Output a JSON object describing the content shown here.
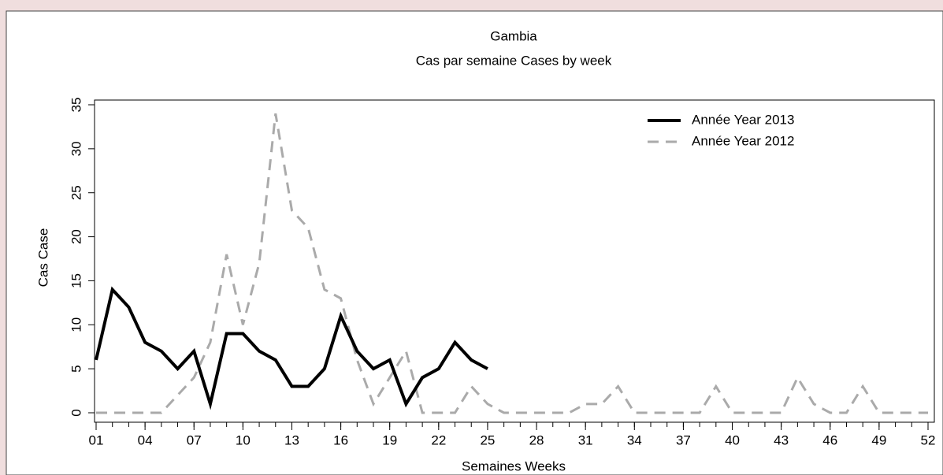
{
  "chart_data": {
    "type": "line",
    "title": "Gambia",
    "subtitle": "Cas par semaine Cases by week",
    "x_label": "Semaines Weeks",
    "y_label": "Cas Case",
    "x": [
      1,
      2,
      3,
      4,
      5,
      6,
      7,
      8,
      9,
      10,
      11,
      12,
      13,
      14,
      15,
      16,
      17,
      18,
      19,
      20,
      21,
      22,
      23,
      24,
      25,
      26,
      27,
      28,
      29,
      30,
      31,
      32,
      33,
      34,
      35,
      36,
      37,
      38,
      39,
      40,
      41,
      42,
      43,
      44,
      45,
      46,
      47,
      48,
      49,
      50,
      51,
      52
    ],
    "series": [
      {
        "name": "Année Year 2013",
        "color": "#000000",
        "dash": false,
        "values": [
          6,
          14,
          12,
          8,
          7,
          5,
          7,
          1,
          9,
          9,
          7,
          6,
          3,
          3,
          5,
          11,
          7,
          5,
          6,
          1,
          4,
          5,
          8,
          6,
          5,
          null,
          null,
          null,
          null,
          null,
          null,
          null,
          null,
          null,
          null,
          null,
          null,
          null,
          null,
          null,
          null,
          null,
          null,
          null,
          null,
          null,
          null,
          null,
          null,
          null,
          null,
          null
        ]
      },
      {
        "name": "Année Year 2012",
        "color": "#aaaaaa",
        "dash": true,
        "values": [
          0,
          0,
          0,
          0,
          0,
          2,
          4,
          8,
          18,
          10,
          17,
          34,
          23,
          21,
          14,
          13,
          6,
          1,
          4,
          7,
          0,
          0,
          0,
          3,
          1,
          0,
          0,
          0,
          0,
          0,
          1,
          1,
          3,
          0,
          0,
          0,
          0,
          0,
          3,
          0,
          0,
          0,
          0,
          4,
          1,
          0,
          0,
          3,
          0,
          0,
          0,
          0
        ]
      }
    ],
    "xlim": [
      1,
      52
    ],
    "xticks": [
      {
        "value": 1,
        "label": "01"
      },
      {
        "value": 4,
        "label": "04"
      },
      {
        "value": 7,
        "label": "07"
      },
      10,
      13,
      16,
      19,
      22,
      25,
      28,
      31,
      34,
      37,
      40,
      43,
      46,
      49,
      52
    ],
    "ylim": [
      0,
      35
    ],
    "yticks": [
      0,
      5,
      10,
      15,
      20,
      25,
      30,
      35
    ],
    "legend": "top-right"
  }
}
